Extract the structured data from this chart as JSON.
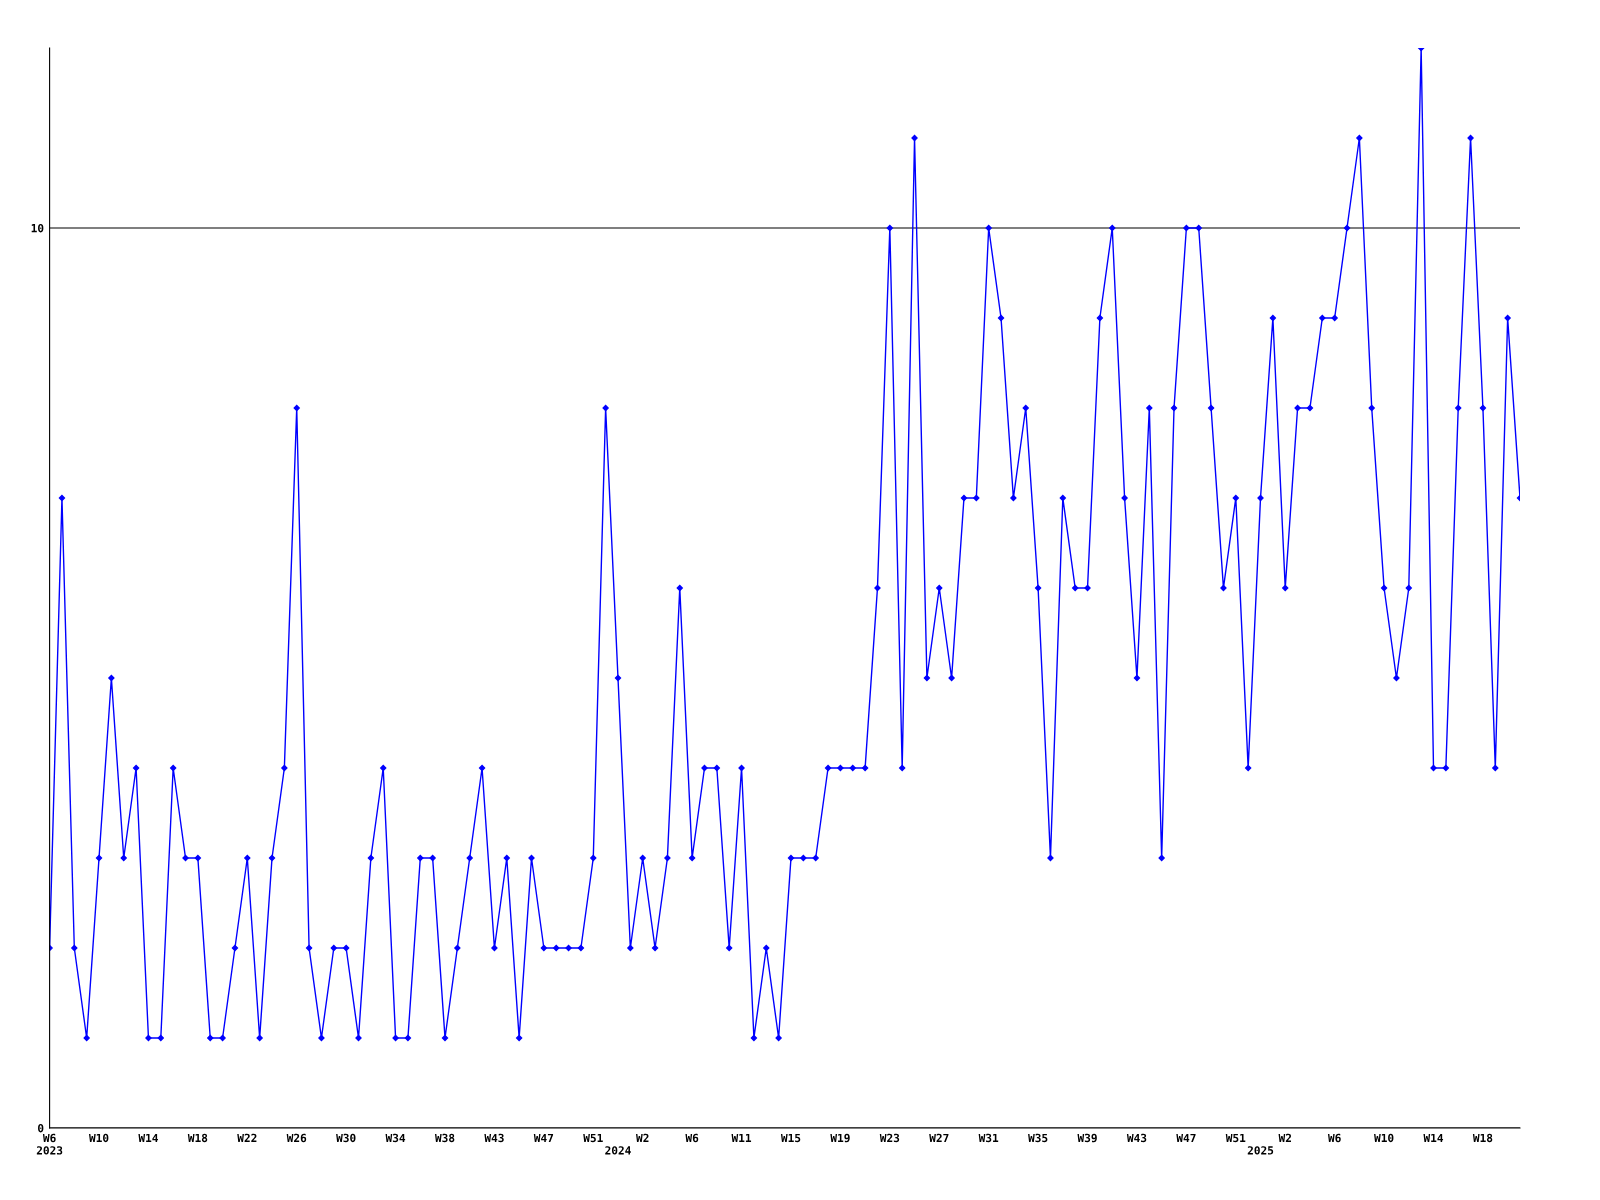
{
  "chart_data": {
    "type": "line",
    "categories": [
      "W6\n2023",
      null,
      null,
      null,
      "W10",
      null,
      null,
      null,
      "W14",
      null,
      null,
      null,
      "W18",
      null,
      null,
      null,
      "W22",
      null,
      null,
      null,
      "W26",
      null,
      null,
      null,
      "W30",
      null,
      null,
      null,
      "W34",
      null,
      null,
      null,
      "W38",
      null,
      null,
      null,
      "W43",
      null,
      null,
      null,
      "W47",
      null,
      null,
      null,
      "W51",
      null,
      "\n2024",
      null,
      "W2",
      null,
      null,
      null,
      "W6",
      null,
      null,
      null,
      "W11",
      null,
      null,
      null,
      "W15",
      null,
      null,
      null,
      "W19",
      null,
      null,
      null,
      "W23",
      null,
      null,
      null,
      "W27",
      null,
      null,
      null,
      "W31",
      null,
      null,
      null,
      "W35",
      null,
      null,
      null,
      "W39",
      null,
      null,
      null,
      "W43",
      null,
      null,
      null,
      "W47",
      null,
      null,
      null,
      "W51",
      null,
      "\n2025",
      null,
      "W2",
      null,
      null,
      null,
      "W6",
      null,
      null,
      null,
      "W10",
      null,
      null,
      null,
      "W14",
      null,
      null,
      null,
      "W18",
      null,
      null,
      null
    ],
    "series": [
      {
        "color": "#0000ff",
        "values": [
          2,
          7,
          2,
          1,
          3,
          5,
          3,
          4,
          1,
          1,
          4,
          3,
          3,
          1,
          1,
          2,
          3,
          1,
          3,
          4,
          8,
          2,
          1,
          2,
          2,
          1,
          3,
          4,
          1,
          1,
          3,
          3,
          1,
          2,
          3,
          4,
          2,
          3,
          1,
          3,
          2,
          2,
          2,
          2,
          3,
          8,
          5,
          2,
          3,
          2,
          3,
          6,
          3,
          4,
          4,
          2,
          4,
          1,
          2,
          1,
          3,
          3,
          3,
          4,
          4,
          4,
          4,
          6,
          10,
          4,
          11,
          5,
          6,
          5,
          7,
          7,
          10,
          9,
          7,
          8,
          6,
          3,
          7,
          6,
          6,
          9,
          10,
          7,
          5,
          8,
          3,
          8,
          10,
          10,
          8,
          6,
          7,
          4,
          7,
          9,
          6,
          8,
          8,
          9,
          9,
          10,
          11,
          8,
          6,
          5,
          6,
          12,
          4,
          4,
          8,
          11,
          8,
          4,
          9,
          7
        ]
      }
    ],
    "ylim": [
      0,
      12
    ],
    "yticks": [
      0,
      10
    ],
    "grid": "y",
    "marker": "diamond",
    "line_style": "solid"
  }
}
